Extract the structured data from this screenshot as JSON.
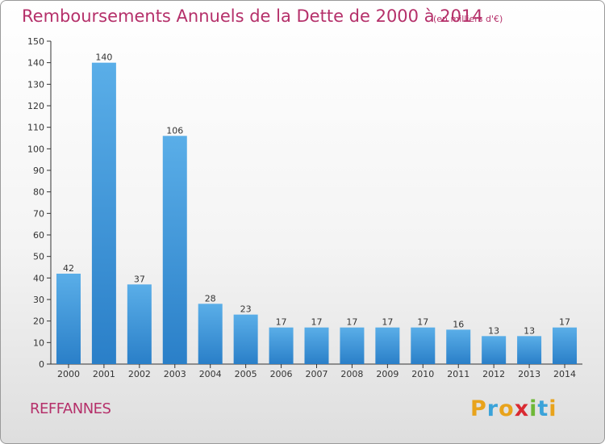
{
  "chart_data": {
    "type": "bar",
    "title": "Remboursements Annuels de la Dette de 2000 à 2014",
    "subtitle": "(en milliers d'€)",
    "categories": [
      "2000",
      "2001",
      "2002",
      "2003",
      "2004",
      "2005",
      "2006",
      "2007",
      "2008",
      "2009",
      "2010",
      "2011",
      "2012",
      "2013",
      "2014"
    ],
    "values": [
      42,
      140,
      37,
      106,
      28,
      23,
      17,
      17,
      17,
      17,
      17,
      16,
      13,
      13,
      17
    ],
    "data_labels": [
      "42",
      "140",
      "37",
      "106",
      "28",
      "23",
      "17",
      "17",
      "17",
      "17",
      "17",
      "16",
      "13",
      "13",
      "17"
    ],
    "ylim": [
      0,
      150
    ],
    "y_ticks": [
      0,
      10,
      20,
      30,
      40,
      50,
      60,
      70,
      80,
      90,
      100,
      110,
      120,
      130,
      140,
      150
    ],
    "grid": false,
    "legend": "none",
    "bar_color_top": "#5aaee8",
    "bar_color_bottom": "#2a7fc8"
  },
  "commune": "REFFANNES",
  "logo": {
    "letters": [
      "P",
      "r",
      "o",
      "x",
      "i",
      "t",
      "i"
    ],
    "colors": [
      "#e8a31c",
      "#3ba3d9",
      "#e8a31c",
      "#d92a32",
      "#6fb838",
      "#3ba3d9",
      "#e8a31c"
    ]
  },
  "theme": {
    "title_color": "#b5306a",
    "axis_color": "#333333"
  }
}
